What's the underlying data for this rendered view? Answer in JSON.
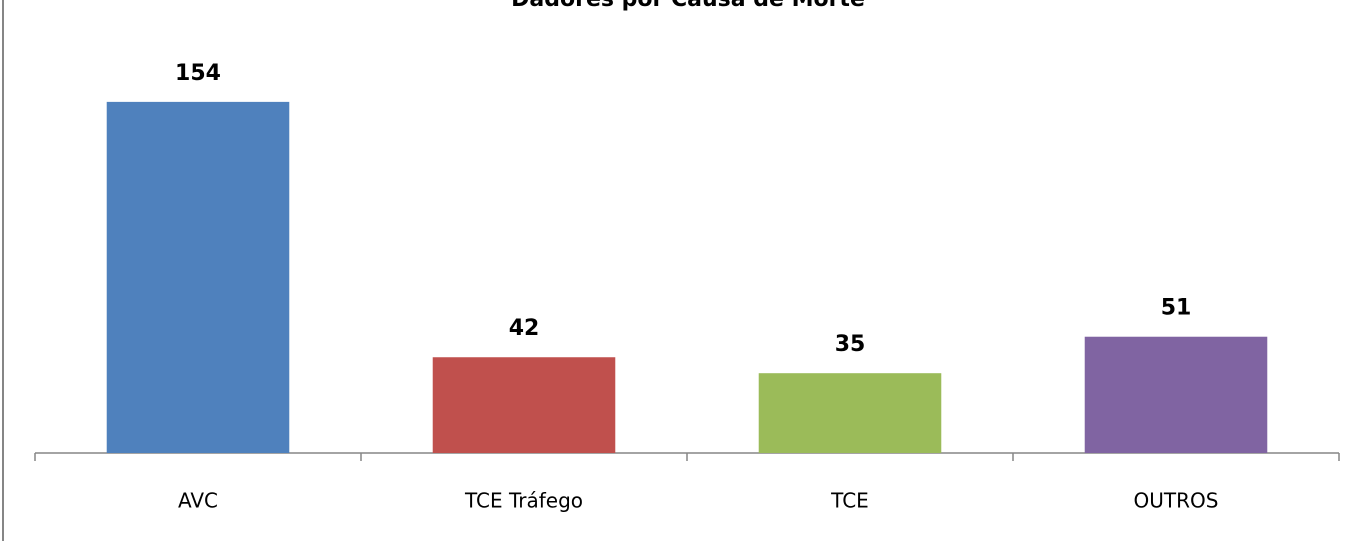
{
  "chart_data": {
    "type": "bar",
    "title": "Dadores por Causa de Morte",
    "categories": [
      "AVC",
      "TCE Tráfego",
      "TCE",
      "OUTROS"
    ],
    "values": [
      154,
      42,
      35,
      51
    ],
    "colors": [
      "#4f81bd",
      "#c0504d",
      "#9bbb59",
      "#8064a2"
    ]
  }
}
